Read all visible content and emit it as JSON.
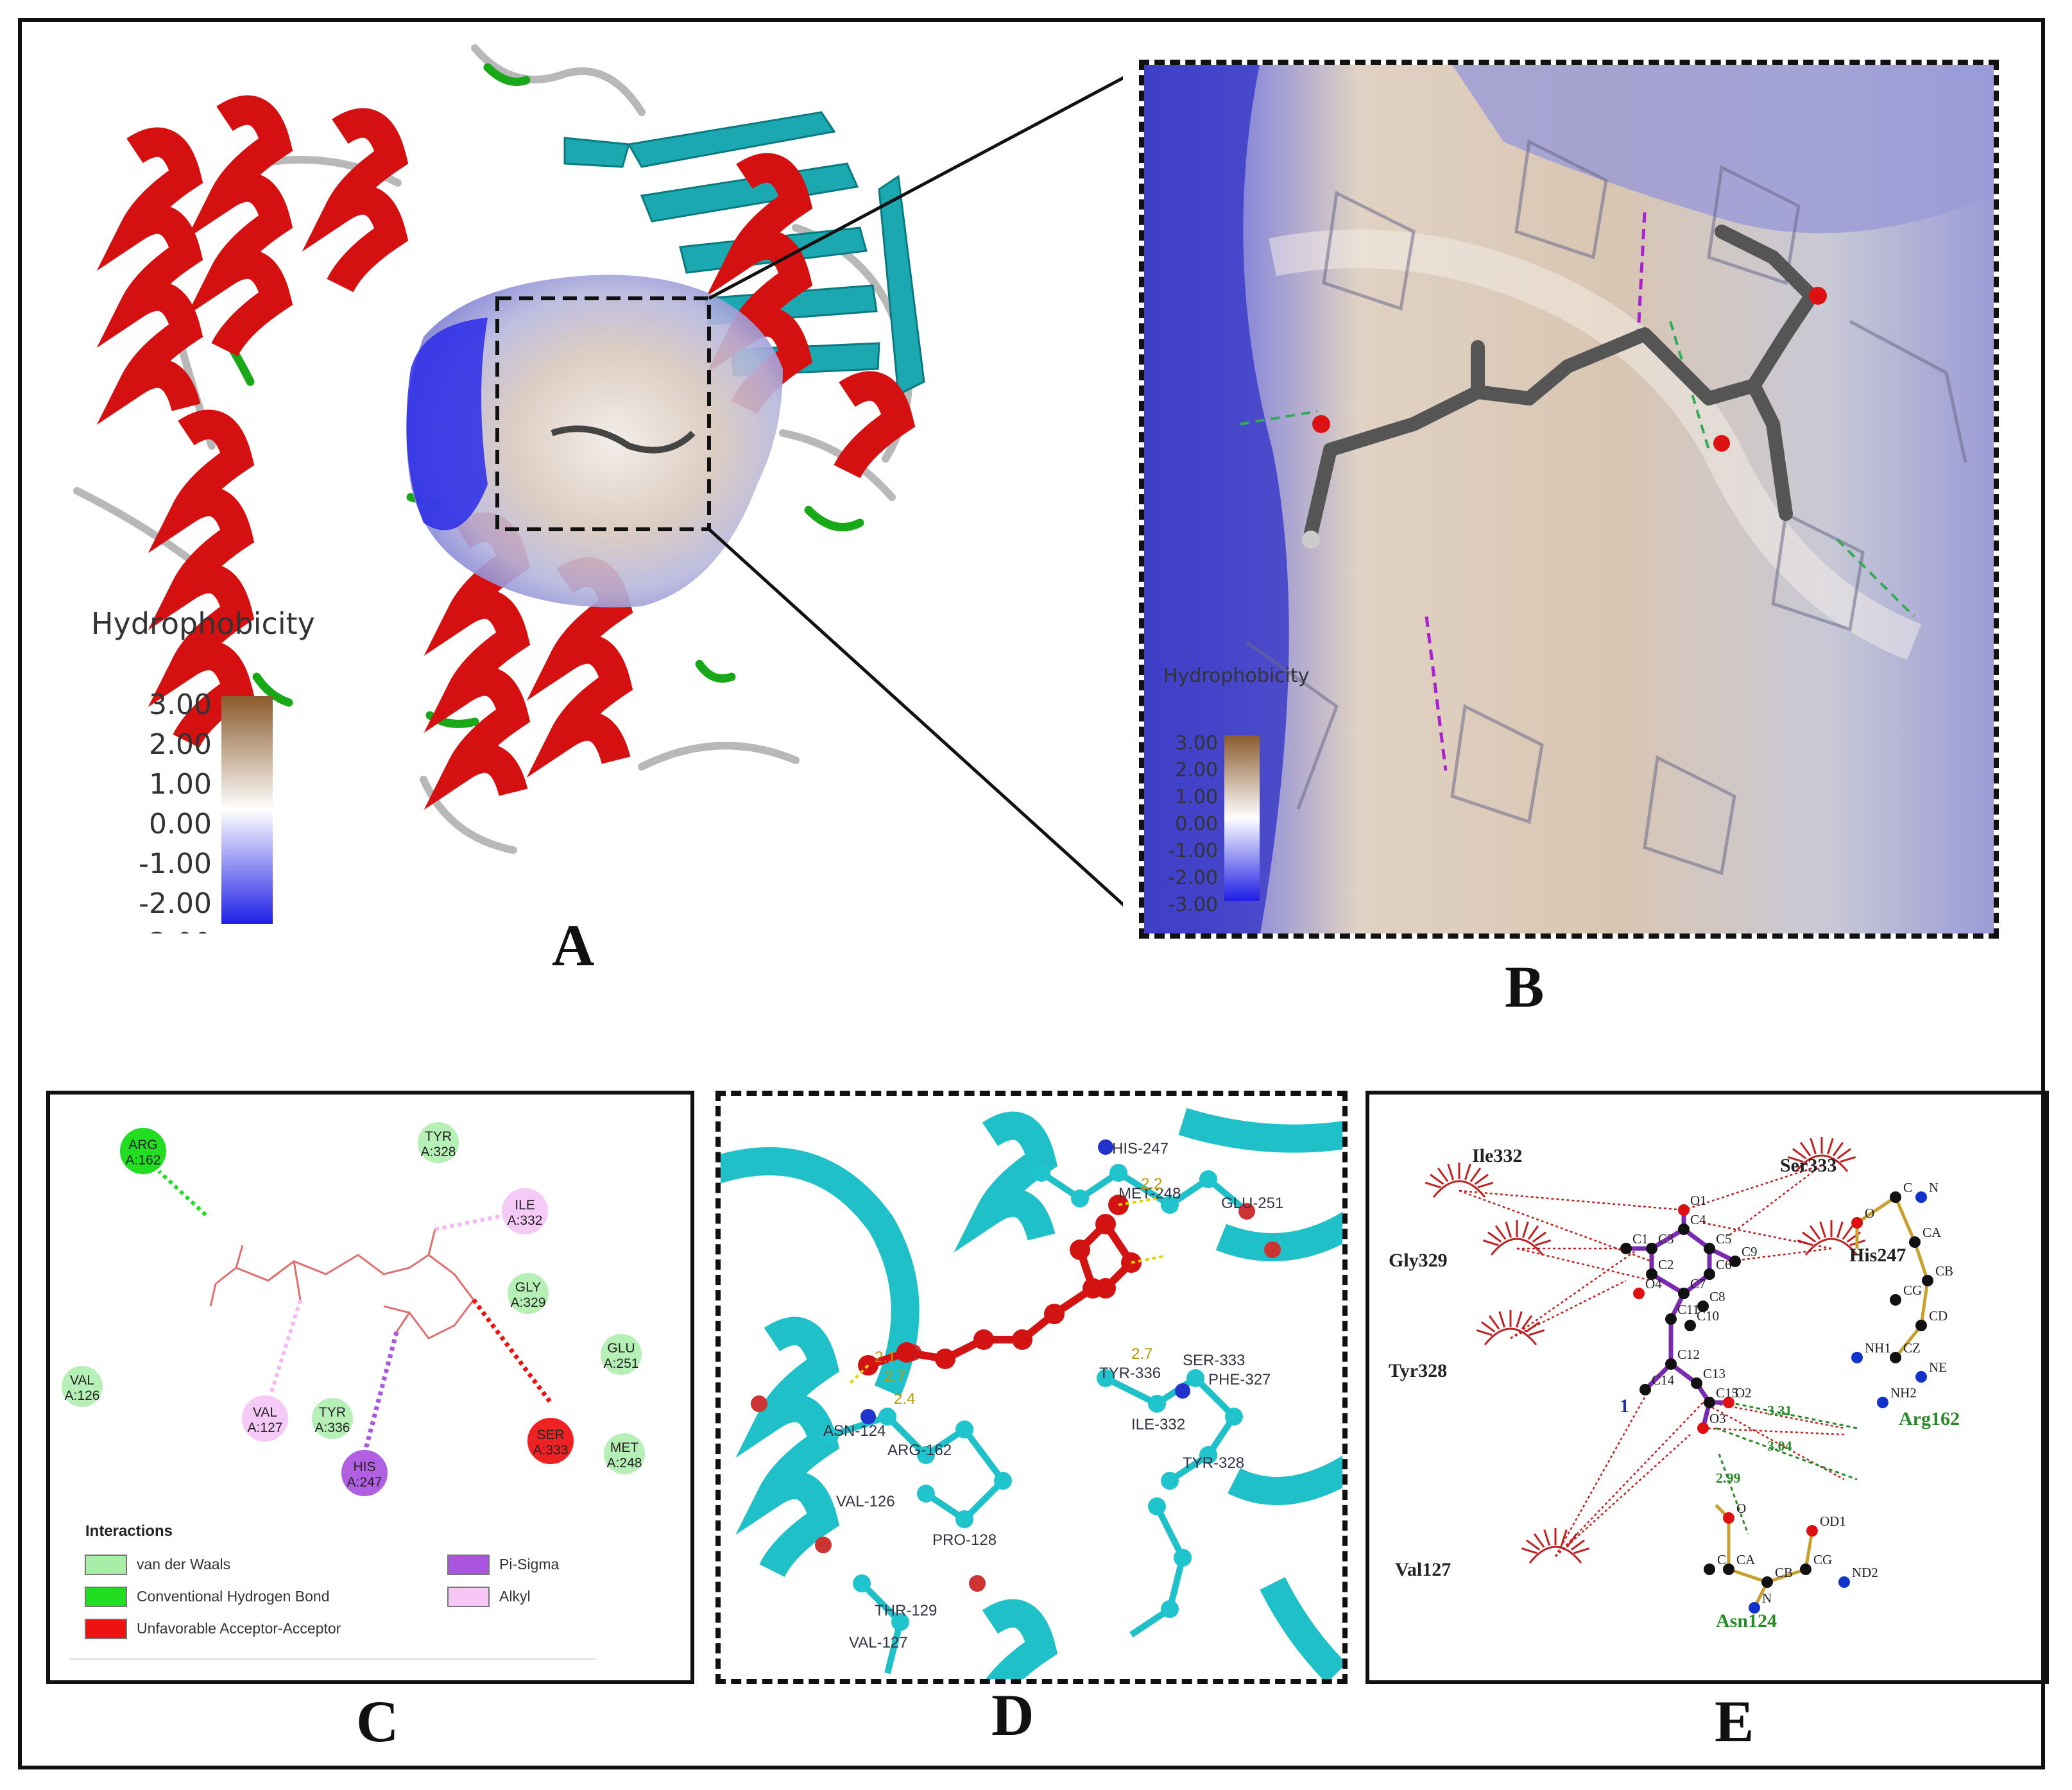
{
  "panels": {
    "a": {
      "label": "A"
    },
    "b": {
      "label": "B"
    },
    "c": {
      "label": "C"
    },
    "d": {
      "label": "D"
    },
    "e": {
      "label": "E"
    }
  },
  "hydrophobicity": {
    "title": "Hydrophobicity",
    "ticks": [
      "3.00",
      "2.00",
      "1.00",
      "0.00",
      "-1.00",
      "-2.00",
      "-3.00"
    ],
    "colors": {
      "high": "#8a5a2b",
      "mid": "#ffffff",
      "low": "#1e1ee6"
    }
  },
  "panel_c": {
    "residues": [
      {
        "name": "ARG",
        "num": "A:162",
        "type": "hbond"
      },
      {
        "name": "TYR",
        "num": "A:328",
        "type": "vdw"
      },
      {
        "name": "ILE",
        "num": "A:332",
        "type": "alkyl"
      },
      {
        "name": "GLY",
        "num": "A:329",
        "type": "vdw"
      },
      {
        "name": "GLU",
        "num": "A:251",
        "type": "vdw"
      },
      {
        "name": "VAL",
        "num": "A:126",
        "type": "vdw"
      },
      {
        "name": "VAL",
        "num": "A:127",
        "type": "alkyl"
      },
      {
        "name": "TYR",
        "num": "A:336",
        "type": "vdw"
      },
      {
        "name": "HIS",
        "num": "A:247",
        "type": "pisigma"
      },
      {
        "name": "SER",
        "num": "A:333",
        "type": "unfav"
      },
      {
        "name": "MET",
        "num": "A:248",
        "type": "vdw"
      }
    ],
    "legend": {
      "title": "Interactions",
      "items": [
        {
          "label": "van der Waals",
          "color": "#a8eea8"
        },
        {
          "label": "Conventional Hydrogen Bond",
          "color": "#22dd22"
        },
        {
          "label": "Unfavorable Acceptor-Acceptor",
          "color": "#ee1111"
        },
        {
          "label": "Pi-Sigma",
          "color": "#aa55dd"
        },
        {
          "label": "Alkyl",
          "color": "#f6c6f6"
        }
      ]
    }
  },
  "panel_d": {
    "labels": [
      "HIS-247",
      "MET-248",
      "GLU-251",
      "SER-333",
      "TYR-336",
      "PHE-327",
      "ILE-332",
      "TYR-328",
      "ASN-124",
      "ARG-162",
      "VAL-127",
      "PRO-128",
      "VAL-126",
      "THR-129"
    ],
    "distances": [
      "2.2",
      "2.1",
      "2.7",
      "2.4",
      "2.7"
    ]
  },
  "panel_e": {
    "residues": [
      "Ile332",
      "Ser333",
      "His247",
      "Gly329",
      "Tyr328",
      "Val127",
      "Arg162",
      "Asn124"
    ],
    "ligand_atoms": [
      "O1",
      "C4",
      "C3",
      "C5",
      "C2",
      "C6",
      "C9",
      "C1",
      "O4",
      "C7",
      "C8",
      "C11",
      "C10",
      "C14",
      "C12",
      "O2",
      "C13",
      "C15",
      "O3"
    ],
    "arg_atoms": [
      "N",
      "C",
      "CA",
      "O",
      "CB",
      "CG",
      "CD",
      "NH1",
      "CZ",
      "NE",
      "NH2"
    ],
    "asn_atoms": [
      "O",
      "OD1",
      "C",
      "CG",
      "ND2",
      "CA",
      "CB",
      "N"
    ],
    "distances": [
      "3.31",
      "3.04",
      "2.99"
    ],
    "marker": "1"
  }
}
